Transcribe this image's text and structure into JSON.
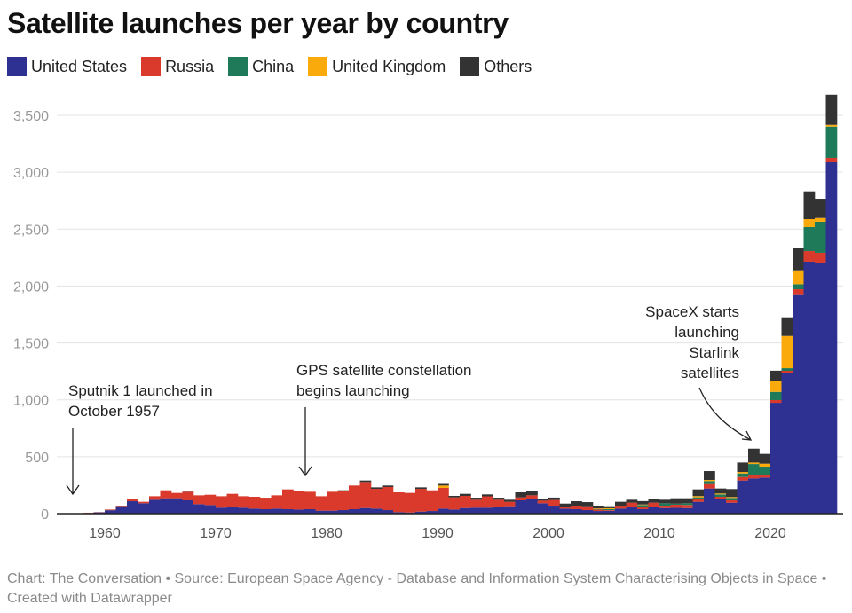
{
  "title": "Satellite launches per year by country",
  "legend": [
    {
      "label": "United States",
      "color": "#2e3192"
    },
    {
      "label": "Russia",
      "color": "#d93a2b"
    },
    {
      "label": "China",
      "color": "#1f7a5a"
    },
    {
      "label": "United Kingdom",
      "color": "#fbaa0b"
    },
    {
      "label": "Others",
      "color": "#333333"
    }
  ],
  "footer": "Chart: The Conversation • Source: European Space Agency - Database and Information System Characterising Objects in Space • Created with Datawrapper",
  "chart_data": {
    "type": "bar",
    "stacked": true,
    "title": "Satellite launches per year by country",
    "xlabel": "",
    "ylabel": "",
    "ylim": [
      0,
      3700
    ],
    "yticks": [
      0,
      500,
      1000,
      1500,
      2000,
      2500,
      3000,
      3500
    ],
    "ytick_labels": [
      "0",
      "500",
      "1,000",
      "1,500",
      "2,000",
      "2,500",
      "3,000",
      "3,500"
    ],
    "xticks": [
      1960,
      1970,
      1980,
      1990,
      2000,
      2010,
      2020
    ],
    "xtick_labels": [
      "1960",
      "1970",
      "1980",
      "1990",
      "2000",
      "2010",
      "2020"
    ],
    "grid": true,
    "legend_position": "top-left",
    "x": [
      1957,
      1958,
      1959,
      1960,
      1961,
      1962,
      1963,
      1964,
      1965,
      1966,
      1967,
      1968,
      1969,
      1970,
      1971,
      1972,
      1973,
      1974,
      1975,
      1976,
      1977,
      1978,
      1979,
      1980,
      1981,
      1982,
      1983,
      1984,
      1985,
      1986,
      1987,
      1988,
      1989,
      1990,
      1991,
      1992,
      1993,
      1994,
      1995,
      1996,
      1997,
      1998,
      1999,
      2000,
      2001,
      2002,
      2003,
      2004,
      2005,
      2006,
      2007,
      2008,
      2009,
      2010,
      2011,
      2012,
      2013,
      2014,
      2015,
      2016,
      2017,
      2018,
      2019,
      2020,
      2021,
      2022,
      2023,
      2024,
      2025
    ],
    "series": [
      {
        "name": "United States",
        "color": "#2e3192",
        "values": [
          0,
          5,
          11,
          30,
          65,
          109,
          91,
          122,
          135,
          135,
          117,
          83,
          75,
          52,
          62,
          52,
          44,
          39,
          44,
          39,
          36,
          39,
          26,
          26,
          31,
          39,
          49,
          44,
          31,
          13,
          10,
          18,
          23,
          44,
          36,
          49,
          52,
          52,
          57,
          65,
          117,
          127,
          91,
          70,
          44,
          39,
          31,
          23,
          25,
          44,
          57,
          39,
          57,
          49,
          51,
          49,
          104,
          221,
          127,
          96,
          291,
          309,
          317,
          974,
          1232,
          1928,
          2214,
          2200,
          3087
        ]
      },
      {
        "name": "Russia",
        "color": "#d93a2b",
        "values": [
          2,
          3,
          2,
          6,
          5,
          21,
          13,
          31,
          70,
          47,
          75,
          78,
          91,
          101,
          112,
          101,
          104,
          101,
          117,
          174,
          159,
          153,
          127,
          166,
          170,
          208,
          229,
          174,
          203,
          174,
          172,
          200,
          182,
          182,
          107,
          107,
          70,
          100,
          65,
          39,
          26,
          34,
          23,
          50,
          13,
          31,
          34,
          13,
          6,
          26,
          39,
          23,
          39,
          21,
          27,
          27,
          26,
          39,
          21,
          21,
          31,
          26,
          26,
          24,
          23,
          44,
          93,
          92,
          39
        ]
      },
      {
        "name": "China",
        "color": "#1f7a5a",
        "values": [
          0,
          0,
          0,
          0,
          0,
          0,
          0,
          0,
          0,
          0,
          0,
          0,
          0,
          0,
          0,
          0,
          0,
          0,
          0,
          0,
          0,
          0,
          0,
          0,
          0,
          0,
          0,
          0,
          0,
          0,
          0,
          0,
          0,
          0,
          0,
          0,
          0,
          0,
          0,
          0,
          0,
          0,
          0,
          0,
          5,
          0,
          0,
          3,
          8,
          0,
          0,
          13,
          0,
          21,
          9,
          15,
          13,
          26,
          21,
          21,
          31,
          101,
          70,
          72,
          23,
          44,
          211,
          273,
          275
        ]
      },
      {
        "name": "United Kingdom",
        "color": "#fbaa0b",
        "values": [
          0,
          0,
          0,
          0,
          0,
          0,
          0,
          0,
          0,
          0,
          0,
          0,
          0,
          0,
          0,
          0,
          0,
          0,
          0,
          0,
          0,
          0,
          0,
          0,
          0,
          0,
          0,
          0,
          0,
          0,
          0,
          0,
          0,
          21,
          0,
          0,
          0,
          0,
          0,
          0,
          0,
          0,
          0,
          0,
          0,
          0,
          0,
          6,
          8,
          0,
          0,
          5,
          0,
          0,
          0,
          0,
          11,
          10,
          8,
          8,
          13,
          13,
          26,
          96,
          283,
          122,
          70,
          33,
          15
        ]
      },
      {
        "name": "Others",
        "color": "#333333",
        "values": [
          0,
          0,
          0,
          0,
          0,
          0,
          0,
          0,
          0,
          0,
          2,
          0,
          0,
          0,
          0,
          0,
          0,
          0,
          0,
          0,
          0,
          0,
          0,
          0,
          4,
          0,
          13,
          13,
          13,
          0,
          0,
          13,
          0,
          14,
          13,
          18,
          18,
          17,
          18,
          18,
          44,
          39,
          16,
          21,
          26,
          39,
          36,
          25,
          18,
          34,
          26,
          30,
          31,
          31,
          48,
          44,
          59,
          78,
          44,
          70,
          83,
          122,
          86,
          90,
          164,
          197,
          244,
          169,
          265
        ]
      }
    ],
    "annotations": [
      {
        "text_lines": [
          "Sputnik 1 launched in",
          "October 1957"
        ],
        "x": 1957,
        "align": "left"
      },
      {
        "text_lines": [
          "GPS satellite constellation",
          "begins launching"
        ],
        "x": 1978,
        "align": "left"
      },
      {
        "text_lines": [
          "SpaceX starts",
          "launching",
          "Starlink",
          "satellites"
        ],
        "x": 2019,
        "align": "right"
      }
    ]
  }
}
